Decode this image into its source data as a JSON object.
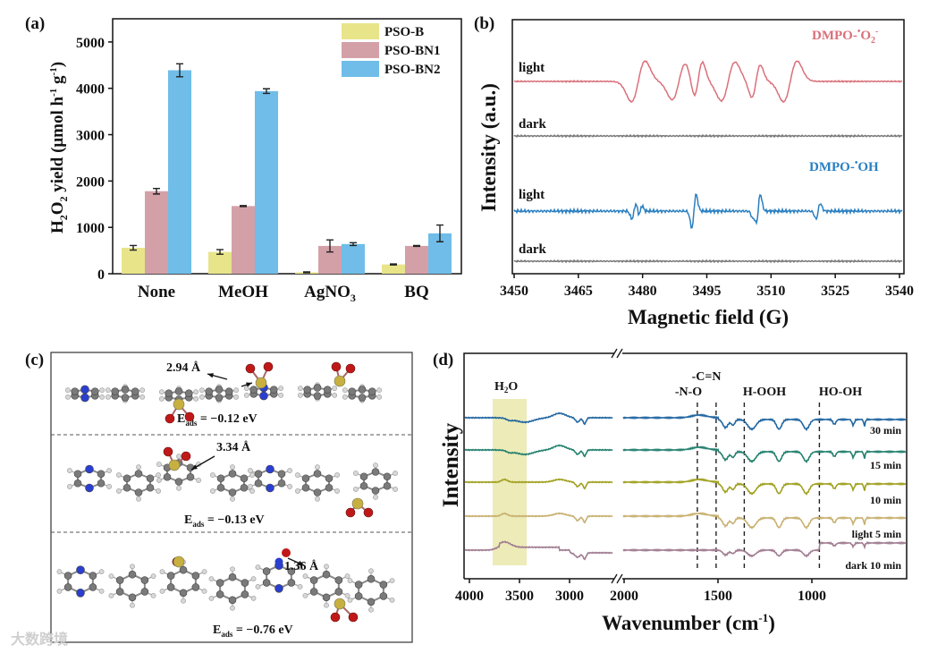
{
  "chart_data": [
    {
      "panel": "(a)",
      "type": "bar",
      "ylabel": "H2O2 yield (μmol h-1 g-1)",
      "ylim": [
        0,
        5500
      ],
      "yticks": [
        "0",
        "1000",
        "2000",
        "3000",
        "4000",
        "5000"
      ],
      "categories": [
        "None",
        "MeOH",
        "AgNO3",
        "BQ"
      ],
      "legend_position": "top-right",
      "series": [
        {
          "name": "PSO-B",
          "color": "#e8e48a",
          "values": [
            560,
            470,
            30,
            200
          ],
          "errors": [
            50,
            50,
            10,
            10
          ]
        },
        {
          "name": "PSO-BN1",
          "color": "#d4a0a8",
          "values": [
            1780,
            1460,
            600,
            600
          ],
          "errors": [
            60,
            10,
            130,
            10
          ]
        },
        {
          "name": "PSO-BN2",
          "color": "#6fbde8",
          "values": [
            4390,
            3940,
            640,
            870
          ],
          "errors": [
            140,
            50,
            30,
            180
          ]
        }
      ]
    },
    {
      "panel": "(b)",
      "type": "line",
      "xlabel": "Magnetic field (G)",
      "ylabel": "Intensity (a.u.)",
      "xlim": [
        3450,
        3542
      ],
      "xticks": [
        "3450",
        "3465",
        "3480",
        "3495",
        "3510",
        "3525",
        "3540"
      ],
      "annotations": [
        "DMPO-•O2-",
        "DMPO-•OH"
      ],
      "series": [
        {
          "name": "light",
          "group": "DMPO-•O2-",
          "color": "#d9707a"
        },
        {
          "name": "dark",
          "group": "DMPO-•O2-",
          "color": "#777777"
        },
        {
          "name": "light",
          "group": "DMPO-•OH",
          "color": "#2a7fc0"
        },
        {
          "name": "dark",
          "group": "DMPO-•OH",
          "color": "#777777"
        }
      ]
    },
    {
      "panel": "(c)",
      "type": "diagram",
      "annotations": [
        {
          "distance": "2.94 Å",
          "energy": "Eads = −0.12 eV",
          "energy_main": "E",
          "energy_sub": "ads",
          "energy_val": " = −0.12 eV"
        },
        {
          "distance": "3.34 Å",
          "energy": "Eads = −0.13 eV",
          "energy_main": "E",
          "energy_sub": "ads",
          "energy_val": " = −0.13 eV"
        },
        {
          "distance": "1.36 Å",
          "energy": "Eads = −0.76 eV",
          "energy_main": "E",
          "energy_sub": "ads",
          "energy_val": " = −0.76 eV"
        }
      ]
    },
    {
      "panel": "(d)",
      "type": "line",
      "xlabel": "Wavenumber (cm-1)",
      "ylabel": "Intensity",
      "xticks": [
        "4000",
        "3500",
        "3000",
        "2000",
        "1500",
        "1000"
      ],
      "axis_break": [
        2580,
        2057
      ],
      "band_labels": [
        "H2O",
        "-N-O",
        "-C=N",
        "H-OOH",
        "HO-OH"
      ],
      "band_positions": [
        3620,
        1610,
        1510,
        1360,
        960
      ],
      "series": [
        {
          "name": "30 min",
          "color": "#2166a0"
        },
        {
          "name": "15 min",
          "color": "#23806e"
        },
        {
          "name": "10 min",
          "color": "#a0a020"
        },
        {
          "name": "light 5 min",
          "color": "#c8b070"
        },
        {
          "name": "dark 10 min",
          "color": "#a07c90"
        }
      ]
    }
  ],
  "watermark": "大数跨境"
}
